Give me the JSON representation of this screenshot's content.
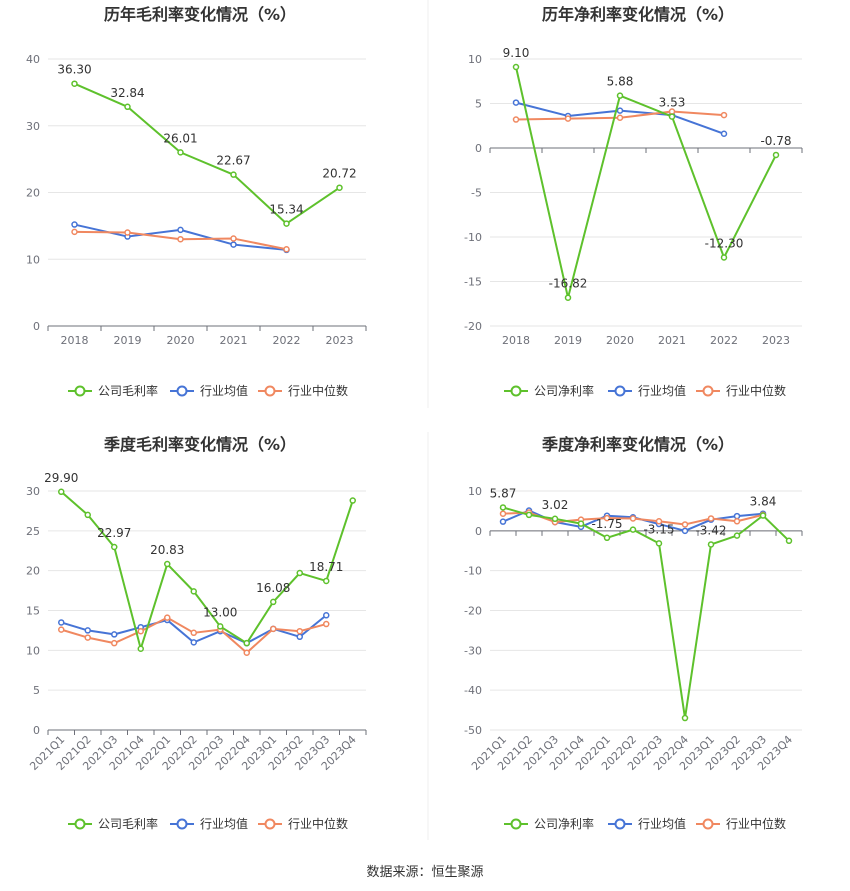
{
  "source_note": "数据来源：恒生聚源",
  "colors": {
    "company": "#5ec12c",
    "industry_avg": "#4674d6",
    "industry_median": "#f08860",
    "grid": "#e6e6e6",
    "axis": "#6e7079"
  },
  "legend_labels": {
    "avg": "行业均值",
    "median": "行业中位数"
  },
  "chart_data": [
    {
      "type": "line",
      "title": "历年毛利率变化情况（%）",
      "categories": [
        "2018",
        "2019",
        "2020",
        "2021",
        "2022",
        "2023"
      ],
      "ylim": [
        0,
        40
      ],
      "yticks": [
        0,
        10,
        20,
        30,
        40
      ],
      "grid": true,
      "legend": "bottom",
      "series": [
        {
          "name": "公司毛利率",
          "key": "company",
          "values": [
            36.3,
            32.84,
            26.01,
            22.67,
            15.34,
            20.72
          ],
          "labels": [
            "36.30",
            "32.84",
            "26.01",
            "22.67",
            "15.34",
            "20.72"
          ]
        },
        {
          "name": "行业均值",
          "key": "industry_avg",
          "values": [
            15.2,
            13.4,
            14.4,
            12.2,
            11.4,
            null
          ]
        },
        {
          "name": "行业中位数",
          "key": "industry_median",
          "values": [
            14.1,
            14.0,
            13.0,
            13.1,
            11.5,
            null
          ]
        }
      ]
    },
    {
      "type": "line",
      "title": "历年净利率变化情况（%）",
      "categories": [
        "2018",
        "2019",
        "2020",
        "2021",
        "2022",
        "2023"
      ],
      "ylim": [
        -20,
        10
      ],
      "yticks": [
        -20,
        -15,
        -10,
        -5,
        0,
        5,
        10
      ],
      "grid": true,
      "legend": "bottom",
      "series": [
        {
          "name": "公司净利率",
          "key": "company",
          "values": [
            9.1,
            -16.82,
            5.88,
            3.53,
            -12.3,
            -0.78
          ],
          "labels": [
            "9.10",
            "-16.82",
            "5.88",
            "3.53",
            "-12.30",
            "-0.78"
          ]
        },
        {
          "name": "行业均值",
          "key": "industry_avg",
          "values": [
            5.1,
            3.6,
            4.2,
            3.7,
            1.6,
            null
          ]
        },
        {
          "name": "行业中位数",
          "key": "industry_median",
          "values": [
            3.2,
            3.3,
            3.4,
            4.1,
            3.7,
            null
          ]
        }
      ]
    },
    {
      "type": "line",
      "title": "季度毛利率变化情况（%）",
      "categories": [
        "2021Q1",
        "2021Q2",
        "2021Q3",
        "2021Q4",
        "2022Q1",
        "2022Q2",
        "2022Q3",
        "2022Q4",
        "2023Q1",
        "2023Q2",
        "2023Q3",
        "2023Q4"
      ],
      "ylim": [
        0,
        30
      ],
      "yticks": [
        0,
        5,
        10,
        15,
        20,
        25,
        30
      ],
      "grid": true,
      "legend": "bottom",
      "series": [
        {
          "name": "公司毛利率",
          "key": "company",
          "values": [
            29.9,
            27.0,
            22.97,
            10.2,
            20.83,
            17.4,
            13.0,
            10.9,
            16.08,
            19.7,
            18.71,
            28.8
          ],
          "labels": [
            "29.90",
            "",
            "22.97",
            "",
            "20.83",
            "",
            "13.00",
            "",
            "16.08",
            "",
            "18.71",
            ""
          ]
        },
        {
          "name": "行业均值",
          "key": "industry_avg",
          "values": [
            13.5,
            12.5,
            12.0,
            12.9,
            13.8,
            11.0,
            12.4,
            10.9,
            12.7,
            11.7,
            14.4,
            null
          ]
        },
        {
          "name": "行业中位数",
          "key": "industry_median",
          "values": [
            12.6,
            11.6,
            10.9,
            12.4,
            14.1,
            12.2,
            12.6,
            9.7,
            12.7,
            12.4,
            13.3,
            null
          ]
        }
      ]
    },
    {
      "type": "line",
      "title": "季度净利率变化情况（%）",
      "categories": [
        "2021Q1",
        "2021Q2",
        "2021Q3",
        "2021Q4",
        "2022Q1",
        "2022Q2",
        "2022Q3",
        "2022Q4",
        "2023Q1",
        "2023Q2",
        "2023Q3",
        "2023Q4"
      ],
      "ylim": [
        -50,
        10
      ],
      "yticks": [
        -50,
        -40,
        -30,
        -20,
        -10,
        0,
        10
      ],
      "grid": true,
      "legend": "bottom",
      "series": [
        {
          "name": "公司净利率",
          "key": "company",
          "values": [
            5.87,
            4.0,
            3.02,
            1.8,
            -1.75,
            0.3,
            -3.15,
            -47.0,
            -3.42,
            -1.2,
            3.84,
            -2.5
          ],
          "labels": [
            "5.87",
            "",
            "3.02",
            "",
            "-1.75",
            "",
            "-3.15",
            "",
            "-3.42",
            "",
            "3.84",
            ""
          ]
        },
        {
          "name": "行业均值",
          "key": "industry_avg",
          "values": [
            2.3,
            5.1,
            2.2,
            1.0,
            3.8,
            3.4,
            1.7,
            0.0,
            2.8,
            3.7,
            4.3,
            null
          ]
        },
        {
          "name": "行业中位数",
          "key": "industry_median",
          "values": [
            4.3,
            4.6,
            2.2,
            2.8,
            3.2,
            3.1,
            2.4,
            1.6,
            3.1,
            2.4,
            4.0,
            null
          ]
        }
      ]
    }
  ]
}
